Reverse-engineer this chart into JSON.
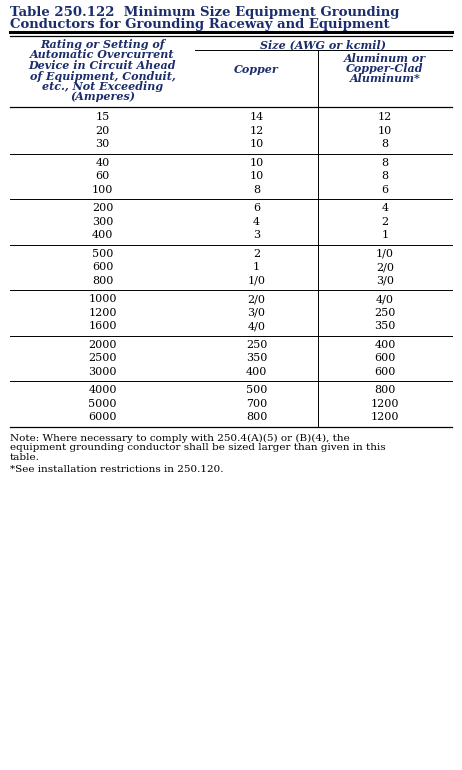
{
  "title_line1": "Table 250.122  Minimum Size Equipment Grounding",
  "title_line2": "Conductors for Grounding Raceway and Equipment",
  "background_color": "#ffffff",
  "col1_header_lines": [
    "Rating or Setting of",
    "Automatic Overcurrent",
    "Device in Circuit Ahead",
    "of Equipment, Conduit,",
    "etc., Not Exceeding",
    "(Amperes)"
  ],
  "col2_header": "Size (AWG or kcmil)",
  "col2a_header": "Copper",
  "col2b_header": [
    "Aluminum or",
    "Copper-Clad",
    "Aluminum*"
  ],
  "groups": [
    {
      "amperes": [
        "15",
        "20",
        "30"
      ],
      "copper": [
        "14",
        "12",
        "10"
      ],
      "aluminum": [
        "12",
        "10",
        "8"
      ]
    },
    {
      "amperes": [
        "40",
        "60",
        "100"
      ],
      "copper": [
        "10",
        "10",
        "8"
      ],
      "aluminum": [
        "8",
        "8",
        "6"
      ]
    },
    {
      "amperes": [
        "200",
        "300",
        "400"
      ],
      "copper": [
        "6",
        "4",
        "3"
      ],
      "aluminum": [
        "4",
        "2",
        "1"
      ]
    },
    {
      "amperes": [
        "500",
        "600",
        "800"
      ],
      "copper": [
        "2",
        "1",
        "1/0"
      ],
      "aluminum": [
        "1/0",
        "2/0",
        "3/0"
      ]
    },
    {
      "amperes": [
        "1000",
        "1200",
        "1600"
      ],
      "copper": [
        "2/0",
        "3/0",
        "4/0"
      ],
      "aluminum": [
        "4/0",
        "250",
        "350"
      ]
    },
    {
      "amperes": [
        "2000",
        "2500",
        "3000"
      ],
      "copper": [
        "250",
        "350",
        "400"
      ],
      "aluminum": [
        "400",
        "600",
        "600"
      ]
    },
    {
      "amperes": [
        "4000",
        "5000",
        "6000"
      ],
      "copper": [
        "500",
        "700",
        "800"
      ],
      "aluminum": [
        "800",
        "1200",
        "1200"
      ]
    }
  ],
  "note_line1": "Note: Where necessary to comply with 250.4(A)(5) or (B)(4), the",
  "note_line2": "equipment grounding conductor shall be sized larger than given in this",
  "note_line3": "table.",
  "footnote": "*See installation restrictions in 250.120.",
  "title_fontsize": 9.5,
  "header_fontsize": 8.0,
  "data_fontsize": 8.0,
  "note_fontsize": 7.5
}
